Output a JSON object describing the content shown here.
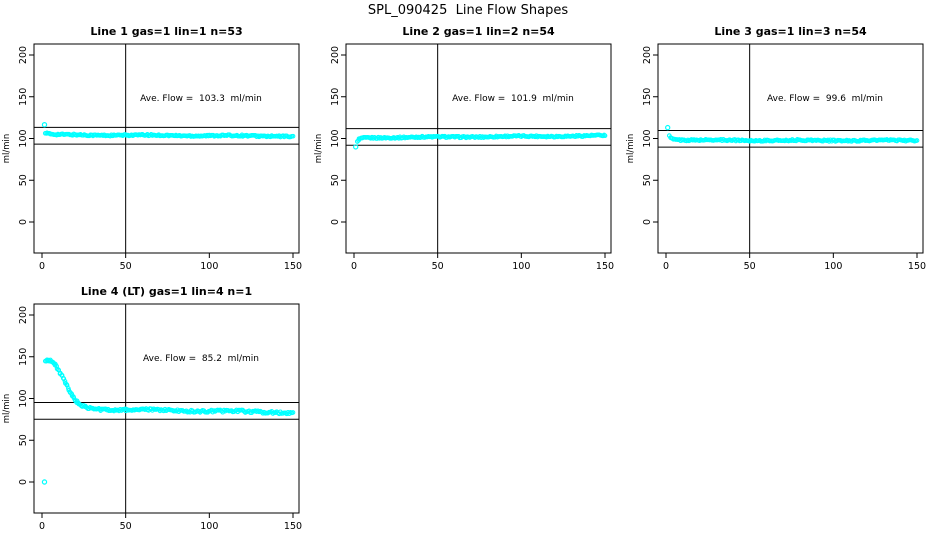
{
  "page": {
    "title": "SPL_090425  Line Flow Shapes"
  },
  "chart_data": [
    {
      "type": "scatter",
      "title": "Line 1 gas=1 lin=1 n=53",
      "annotation": "Ave. Flow =  103.3  ml/min",
      "avg_flow_ml_min": 103.3,
      "n": 53,
      "xlabel": "",
      "ylabel": "ml/min",
      "xlim": [
        0,
        150
      ],
      "ylim": [
        0,
        200
      ],
      "xticks": [
        0,
        50,
        100,
        150
      ],
      "yticks": [
        0,
        50,
        100,
        150,
        200
      ],
      "vline_x": 50,
      "hlines": [
        113.3,
        93.3
      ],
      "marker_color": "#00FFFF",
      "band_halfwidth": 0.9,
      "lone_points": [
        [
          1.5,
          116.5
        ]
      ],
      "trend": [
        [
          2,
          107
        ],
        [
          3,
          106
        ],
        [
          5,
          105
        ],
        [
          10,
          104.5
        ],
        [
          20,
          104.3
        ],
        [
          40,
          104
        ],
        [
          60,
          103.8
        ],
        [
          80,
          103.6
        ],
        [
          100,
          103.4
        ],
        [
          120,
          103.2
        ],
        [
          150,
          102.7
        ]
      ]
    },
    {
      "type": "scatter",
      "title": "Line 2 gas=1 lin=2 n=54",
      "annotation": "Ave. Flow =  101.9  ml/min",
      "avg_flow_ml_min": 101.9,
      "n": 54,
      "xlabel": "",
      "ylabel": "ml/min",
      "xlim": [
        0,
        150
      ],
      "ylim": [
        0,
        200
      ],
      "xticks": [
        0,
        50,
        100,
        150
      ],
      "yticks": [
        0,
        50,
        100,
        150,
        200
      ],
      "vline_x": 50,
      "hlines": [
        111.9,
        91.9
      ],
      "marker_color": "#00FFFF",
      "band_halfwidth": 0.9,
      "lone_points": [
        [
          1,
          90
        ]
      ],
      "trend": [
        [
          2,
          95.5
        ],
        [
          3,
          99
        ],
        [
          5,
          100.3
        ],
        [
          10,
          100.8
        ],
        [
          20,
          101.2
        ],
        [
          40,
          101.6
        ],
        [
          70,
          102
        ],
        [
          100,
          102.5
        ],
        [
          130,
          103
        ],
        [
          150,
          103.4
        ]
      ]
    },
    {
      "type": "scatter",
      "title": "Line 3 gas=1 lin=3 n=54",
      "annotation": "Ave. Flow =  99.6  ml/min",
      "avg_flow_ml_min": 99.6,
      "n": 54,
      "xlabel": "",
      "ylabel": "ml/min",
      "xlim": [
        0,
        150
      ],
      "ylim": [
        0,
        200
      ],
      "xticks": [
        0,
        50,
        100,
        150
      ],
      "yticks": [
        0,
        50,
        100,
        150,
        200
      ],
      "vline_x": 50,
      "hlines": [
        109.6,
        89.6
      ],
      "marker_color": "#00FFFF",
      "band_halfwidth": 0.9,
      "lone_points": [
        [
          1,
          113
        ]
      ],
      "trend": [
        [
          2,
          104.5
        ],
        [
          3,
          100.5
        ],
        [
          5,
          99
        ],
        [
          10,
          98.3
        ],
        [
          20,
          98
        ],
        [
          50,
          97.8
        ],
        [
          90,
          97.6
        ],
        [
          120,
          97.6
        ],
        [
          150,
          97.6
        ]
      ]
    },
    {
      "type": "scatter",
      "title": "Line 4 (LT) gas=1 lin=4 n=1",
      "annotation": "Ave. Flow =  85.2  ml/min",
      "avg_flow_ml_min": 85.2,
      "n": 1,
      "xlabel": "",
      "ylabel": "ml/min",
      "xlim": [
        0,
        150
      ],
      "ylim": [
        0,
        200
      ],
      "xticks": [
        0,
        50,
        100,
        150
      ],
      "yticks": [
        0,
        50,
        100,
        150,
        200
      ],
      "vline_x": 50,
      "hlines": [
        95.2,
        75.2
      ],
      "marker_color": "#00FFFF",
      "band_halfwidth": 1.4,
      "lone_points": [
        [
          1.5,
          0
        ]
      ],
      "trend": [
        [
          2,
          144.5
        ],
        [
          3,
          145.5
        ],
        [
          4,
          146
        ],
        [
          5,
          145.5
        ],
        [
          6,
          144
        ],
        [
          7,
          142
        ],
        [
          8,
          139.5
        ],
        [
          9,
          136.5
        ],
        [
          10,
          133
        ],
        [
          11,
          129.5
        ],
        [
          12,
          126
        ],
        [
          13,
          122
        ],
        [
          14,
          118
        ],
        [
          15,
          114
        ],
        [
          16,
          110
        ],
        [
          17,
          106.5
        ],
        [
          18,
          103
        ],
        [
          19,
          100
        ],
        [
          20,
          97.5
        ],
        [
          21,
          95.5
        ],
        [
          22,
          93.5
        ],
        [
          24,
          91
        ],
        [
          26,
          89.5
        ],
        [
          28,
          88.5
        ],
        [
          31,
          87.8
        ],
        [
          35,
          87.3
        ],
        [
          40,
          87
        ],
        [
          50,
          86.5
        ],
        [
          60,
          86.2
        ],
        [
          75,
          85.8
        ],
        [
          90,
          85.2
        ],
        [
          105,
          84.8
        ],
        [
          120,
          84.3
        ],
        [
          135,
          83.8
        ],
        [
          150,
          83.2
        ]
      ]
    }
  ]
}
